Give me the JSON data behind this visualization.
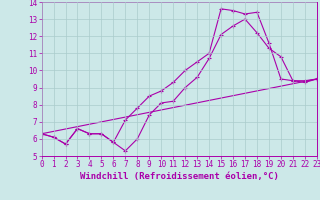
{
  "xlabel": "Windchill (Refroidissement éolien,°C)",
  "xlim": [
    0,
    23
  ],
  "ylim": [
    5,
    14
  ],
  "yticks": [
    5,
    6,
    7,
    8,
    9,
    10,
    11,
    12,
    13,
    14
  ],
  "xticks": [
    0,
    1,
    2,
    3,
    4,
    5,
    6,
    7,
    8,
    9,
    10,
    11,
    12,
    13,
    14,
    15,
    16,
    17,
    18,
    19,
    20,
    21,
    22,
    23
  ],
  "bg_color": "#cce8e8",
  "line_color": "#aa00aa",
  "grid_color": "#aacccc",
  "lines": [
    {
      "x": [
        0,
        1,
        2,
        3,
        4,
        5,
        6,
        7,
        8,
        9,
        10,
        11,
        12,
        13,
        14,
        15,
        16,
        17,
        18,
        19,
        20,
        21,
        22,
        23
      ],
      "y": [
        6.3,
        6.1,
        5.7,
        6.6,
        6.3,
        6.3,
        5.8,
        5.3,
        6.0,
        7.4,
        8.1,
        8.2,
        9.0,
        9.6,
        10.7,
        12.1,
        12.6,
        13.0,
        12.2,
        11.3,
        10.8,
        9.4,
        9.4,
        9.5
      ]
    },
    {
      "x": [
        0,
        1,
        2,
        3,
        4,
        5,
        6,
        7,
        8,
        9,
        10,
        11,
        12,
        13,
        14,
        15,
        16,
        17,
        18,
        19,
        20,
        21,
        22,
        23
      ],
      "y": [
        6.3,
        6.1,
        5.7,
        6.6,
        6.3,
        6.3,
        5.8,
        7.1,
        7.8,
        8.5,
        8.8,
        9.3,
        10.0,
        10.5,
        11.0,
        13.6,
        13.5,
        13.3,
        13.4,
        11.6,
        9.5,
        9.4,
        9.3,
        9.5
      ]
    },
    {
      "x": [
        0,
        23
      ],
      "y": [
        6.3,
        9.5
      ]
    }
  ],
  "marker": "+",
  "markersize": 3.5,
  "linewidth": 0.8,
  "tick_fontsize": 5.5,
  "xlabel_fontsize": 6.5
}
